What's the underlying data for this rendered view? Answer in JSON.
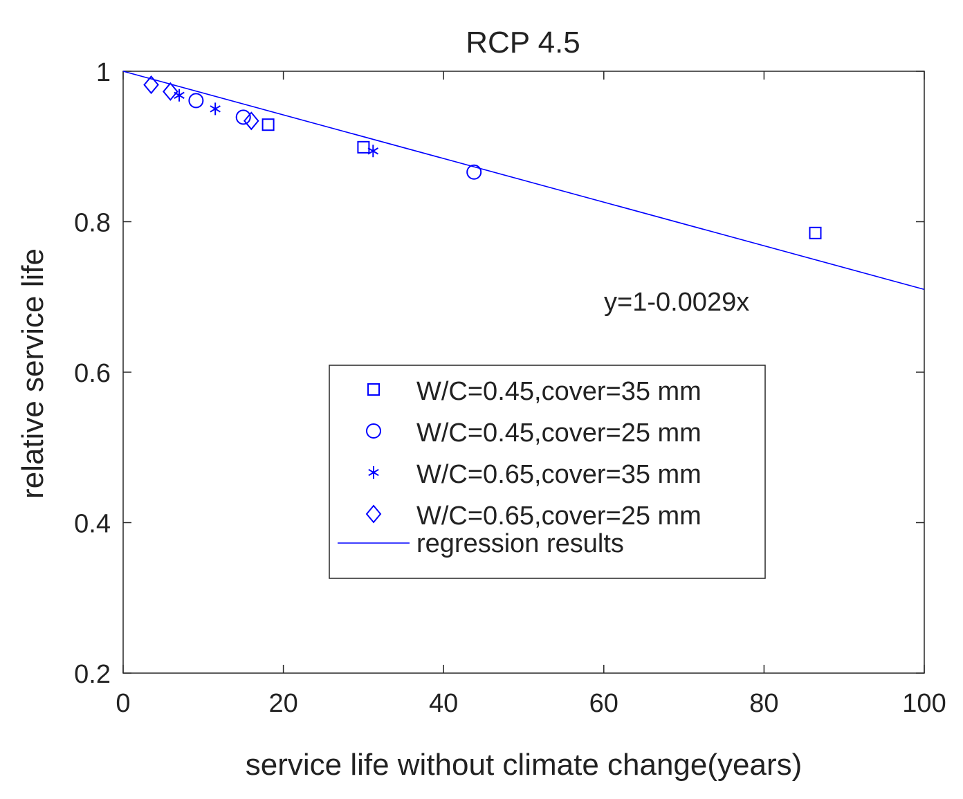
{
  "chart_data": {
    "type": "scatter",
    "title": "RCP 4.5",
    "xlabel": "service life without climate change(years)",
    "ylabel": "relative service life",
    "xlim": [
      0,
      100
    ],
    "ylim": [
      0.2,
      1
    ],
    "xticks": [
      0,
      20,
      40,
      60,
      80,
      100
    ],
    "xtick_labels": [
      "0",
      "20",
      "40",
      "60",
      "80",
      "100"
    ],
    "yticks": [
      0.2,
      0.4,
      0.6,
      0.8,
      1
    ],
    "ytick_labels": [
      "0.2",
      "0.4",
      "0.6",
      "0.8",
      "1"
    ],
    "grid": false,
    "legend_position": "center-right",
    "color": "#0000ff",
    "series": [
      {
        "name": "W/C=0.45,cover=35 mm",
        "marker": "square",
        "x": [
          18.1,
          30.0,
          86.4
        ],
        "y": [
          0.929,
          0.899,
          0.785
        ]
      },
      {
        "name": "W/C=0.45,cover=25 mm",
        "marker": "circle",
        "x": [
          9.1,
          15.0,
          43.8
        ],
        "y": [
          0.961,
          0.939,
          0.866
        ]
      },
      {
        "name": "W/C=0.65,cover=35 mm",
        "marker": "asterisk",
        "x": [
          7.0,
          11.5,
          31.2
        ],
        "y": [
          0.968,
          0.95,
          0.894
        ]
      },
      {
        "name": "W/C=0.65,cover=25 mm",
        "marker": "diamond",
        "x": [
          3.5,
          5.9,
          16.0
        ],
        "y": [
          0.982,
          0.973,
          0.934
        ]
      }
    ],
    "regression": {
      "name": "regression results",
      "intercept": 1,
      "slope": -0.0029
    },
    "annotation": "y=1-0.0029x"
  }
}
